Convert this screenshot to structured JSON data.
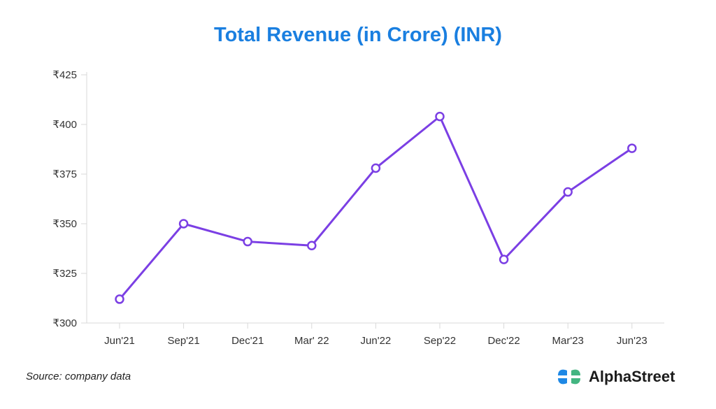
{
  "chart_data": {
    "type": "line",
    "title": "Total Revenue (in Crore) (INR)",
    "categories": [
      "Jun'21",
      "Sep'21",
      "Dec'21",
      "Mar' 22",
      "Jun'22",
      "Sep'22",
      "Dec'22",
      "Mar'23",
      "Jun'23"
    ],
    "values": [
      312,
      350,
      341,
      339,
      378,
      404,
      332,
      366,
      388
    ],
    "ylim": [
      300,
      425
    ],
    "yticks": [
      300,
      325,
      350,
      375,
      400,
      425
    ],
    "ytick_labels": [
      "₹300",
      "₹325",
      "₹350",
      "₹375",
      "₹400",
      "₹425"
    ],
    "xlabel": "",
    "ylabel": "",
    "grid": false,
    "line_color": "#7b3fe4",
    "marker_fill": "#ffffff"
  },
  "footer": {
    "source": "Source: company data",
    "brand_name": "AlphaStreet"
  },
  "colors": {
    "title": "#1a7fe0",
    "axis": "#d9d9d9",
    "logo_blue": "#1e88e5",
    "logo_green": "#43b581"
  },
  "icons": {
    "brand_logo": "alphastreet-logo-icon"
  }
}
